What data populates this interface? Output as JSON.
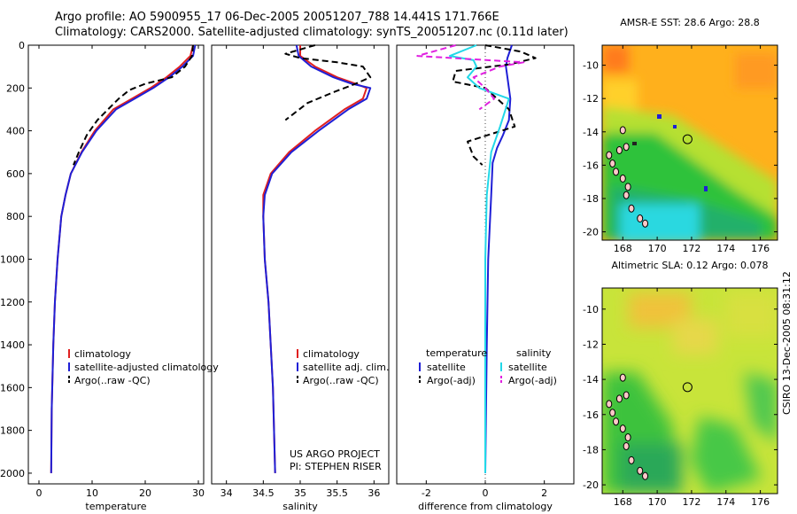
{
  "header": {
    "line1": "Argo profile: AO 5900955_17 06-Dec-2005 20051207_788 14.441S 171.766E",
    "line2": "Climatology: CARS2000. Satellite-adjusted climatology: synTS_20051207.nc (0.11d later)"
  },
  "footer": {
    "stamp": "CSIRO 13-Dec-2005 08:31:12"
  },
  "colors": {
    "climatology": "#e02020",
    "satellite": "#1f1fd6",
    "argo": "#000000",
    "sal_satellite": "#22d8e8",
    "sal_argo": "#e020e0",
    "coast": "#ffc8c8"
  },
  "chart_data": [
    {
      "type": "line",
      "title": "",
      "xlabel": "temperature",
      "ylabel": "",
      "xlim": [
        -2,
        31
      ],
      "ylim": [
        2050,
        0
      ],
      "xticks": [
        0,
        10,
        20,
        30
      ],
      "yticks": [
        0,
        200,
        400,
        600,
        800,
        1000,
        1200,
        1400,
        1600,
        1800,
        2000
      ],
      "legend": {
        "placement": "bottom-right",
        "entries": [
          "climatology",
          "satellite-adjusted climatology",
          "Argo(..raw -QC)"
        ]
      },
      "series": [
        {
          "name": "climatology",
          "style": "solid",
          "color": "#e02020",
          "x": [
            29.0,
            28.5,
            26.5,
            24.0,
            21.0,
            17.5,
            14.0,
            10.5,
            8.0,
            6.0,
            5.0,
            4.2,
            3.5,
            3.0,
            2.7,
            2.4,
            2.3
          ],
          "y": [
            0,
            50,
            100,
            150,
            200,
            250,
            300,
            400,
            500,
            600,
            700,
            800,
            1000,
            1200,
            1400,
            1700,
            2000
          ]
        },
        {
          "name": "satellite-adjusted climatology",
          "style": "solid",
          "color": "#1f1fd6",
          "x": [
            29.4,
            29.0,
            27.0,
            24.5,
            21.5,
            18.0,
            14.5,
            10.8,
            8.1,
            6.0,
            5.0,
            4.2,
            3.5,
            3.0,
            2.7,
            2.4,
            2.3
          ],
          "y": [
            0,
            50,
            100,
            150,
            200,
            250,
            300,
            400,
            500,
            600,
            700,
            800,
            1000,
            1200,
            1400,
            1700,
            2000
          ]
        },
        {
          "name": "Argo(..raw -QC)",
          "style": "dashed",
          "color": "#000000",
          "x": [
            29.0,
            28.8,
            27.5,
            25.0,
            20.0,
            17.0,
            15.0,
            13.0,
            11.0,
            9.0,
            7.5,
            6.5
          ],
          "y": [
            0,
            50,
            100,
            150,
            180,
            210,
            250,
            300,
            350,
            420,
            500,
            560
          ]
        }
      ]
    },
    {
      "type": "line",
      "title": "",
      "xlabel": "salinity",
      "ylabel": "",
      "xlim": [
        33.8,
        36.2
      ],
      "ylim": [
        2050,
        0
      ],
      "xticks": [
        34,
        34.5,
        35,
        35.5,
        36
      ],
      "yticks": [],
      "legend": {
        "placement": "bottom-right",
        "entries": [
          "climatology",
          "satellite adj. clim.",
          "Argo(..raw -QC)"
        ]
      },
      "annotations": [
        "US ARGO PROJECT",
        "PI: STEPHEN RISER"
      ],
      "series": [
        {
          "name": "climatology",
          "style": "solid",
          "color": "#e02020",
          "x": [
            35.0,
            35.0,
            35.2,
            35.5,
            35.75,
            35.9,
            35.85,
            35.6,
            35.2,
            34.85,
            34.6,
            34.5,
            34.5,
            34.52,
            34.57,
            34.63,
            34.66
          ],
          "y": [
            0,
            50,
            100,
            150,
            180,
            200,
            250,
            300,
            400,
            500,
            600,
            700,
            800,
            1000,
            1200,
            1600,
            2000
          ]
        },
        {
          "name": "satellite adj. clim.",
          "style": "solid",
          "color": "#1f1fd6",
          "x": [
            34.95,
            34.98,
            35.15,
            35.45,
            35.7,
            35.95,
            35.9,
            35.65,
            35.25,
            34.88,
            34.62,
            34.52,
            34.5,
            34.52,
            34.57,
            34.63,
            34.66
          ],
          "y": [
            0,
            50,
            100,
            150,
            180,
            200,
            250,
            300,
            400,
            500,
            600,
            700,
            800,
            1000,
            1200,
            1600,
            2000
          ]
        },
        {
          "name": "Argo(..raw -QC)",
          "style": "dashed",
          "color": "#000000",
          "x": [
            35.2,
            34.8,
            35.0,
            35.5,
            35.85,
            35.95,
            35.75,
            35.45,
            35.1,
            34.8
          ],
          "y": [
            0,
            40,
            60,
            80,
            100,
            150,
            180,
            220,
            270,
            350
          ]
        }
      ]
    },
    {
      "type": "line",
      "title": "",
      "xlabel": "difference from climatology",
      "ylabel": "",
      "xlim": [
        -3,
        3
      ],
      "ylim": [
        2050,
        0
      ],
      "xticks": [
        -2,
        0,
        2
      ],
      "yticks": [],
      "legend": {
        "placement": "bottom",
        "entries": [
          "temperature",
          "satellite",
          "Argo(-adj)",
          "salinity",
          "satellite",
          "Argo(-adj)"
        ]
      },
      "series": [
        {
          "name": "satellite",
          "group": "temperature",
          "style": "solid",
          "color": "#1f1fd6",
          "x": [
            0.9,
            0.75,
            0.7,
            0.75,
            0.85,
            0.8,
            0.6,
            0.4,
            0.25,
            0.2,
            0.1,
            0.05,
            0.0
          ],
          "y": [
            0,
            60,
            100,
            150,
            250,
            350,
            420,
            480,
            550,
            700,
            1000,
            1400,
            2000
          ]
        },
        {
          "name": "Argo(-adj)",
          "group": "temperature",
          "style": "dashed",
          "color": "#000000",
          "x": [
            0.0,
            1.2,
            1.7,
            0.8,
            -1.0,
            -1.1,
            0.0,
            0.8,
            1.0,
            -0.6,
            -0.4,
            -0.1
          ],
          "y": [
            0,
            30,
            60,
            90,
            120,
            170,
            200,
            300,
            380,
            450,
            520,
            560
          ]
        },
        {
          "name": "satellite",
          "group": "salinity",
          "style": "solid",
          "color": "#22d8e8",
          "x": [
            -0.3,
            -1.2,
            -0.4,
            -0.3,
            -0.6,
            -0.2,
            0.8,
            0.5,
            0.2,
            0.05,
            0.0,
            0.0
          ],
          "y": [
            0,
            50,
            70,
            100,
            150,
            200,
            250,
            380,
            500,
            700,
            1000,
            2000
          ]
        },
        {
          "name": "Argo(-adj)",
          "group": "salinity",
          "style": "dashed",
          "color": "#e020e0",
          "x": [
            -1.0,
            -2.3,
            1.3,
            0.5,
            -0.4,
            0.0,
            0.3,
            -0.2
          ],
          "y": [
            0,
            50,
            80,
            100,
            150,
            200,
            250,
            300
          ]
        }
      ]
    },
    {
      "type": "heatmap",
      "title": "AMSR-E SST: 28.6 Argo: 28.8",
      "xlabel": "",
      "ylabel": "",
      "xlim": [
        166.8,
        177.0
      ],
      "ylim": [
        -20.5,
        -8.8
      ],
      "xticks": [
        168,
        170,
        172,
        174,
        176
      ],
      "yticks": [
        -10,
        -12,
        -14,
        -16,
        -18,
        -20
      ],
      "marker": {
        "lon": 171.766,
        "lat": -14.441
      }
    },
    {
      "type": "heatmap",
      "title": "Altimetric SLA: 0.12 Argo: 0.078",
      "xlabel": "",
      "ylabel": "",
      "xlim": [
        166.8,
        177.0
      ],
      "ylim": [
        -20.5,
        -8.8
      ],
      "xticks": [
        168,
        170,
        172,
        174,
        176
      ],
      "yticks": [
        -10,
        -12,
        -14,
        -16,
        -18,
        -20
      ],
      "marker": {
        "lon": 171.766,
        "lat": -14.441
      }
    }
  ]
}
